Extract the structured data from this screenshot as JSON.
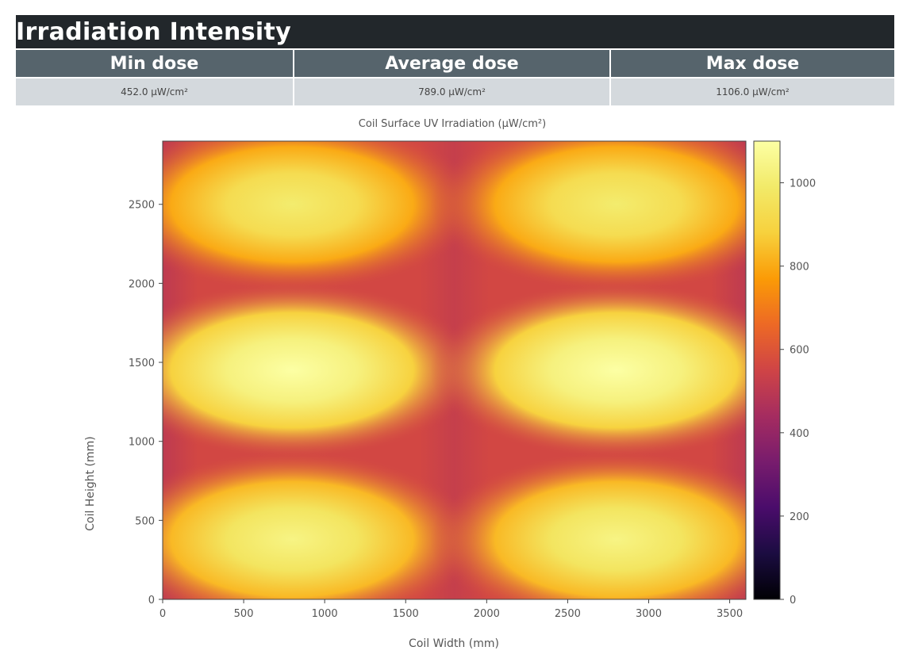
{
  "header": {
    "title": "Irradiation Intensity"
  },
  "stats": [
    {
      "label": "Min dose",
      "value": "452.0 µW/cm²"
    },
    {
      "label": "Average dose",
      "value": "789.0 µW/cm²"
    },
    {
      "label": "Max dose",
      "value": "1106.0 µW/cm²"
    }
  ],
  "chart_data": {
    "type": "heatmap",
    "title": "Coil Surface UV Irradiation (µW/cm²)",
    "xlabel": "Coil Width (mm)",
    "ylabel": "Coil Height (mm)",
    "xlim": [
      0,
      3600
    ],
    "ylim": [
      0,
      2900
    ],
    "x_ticks": [
      0,
      500,
      1000,
      1500,
      2000,
      2500,
      3000,
      3500
    ],
    "y_ticks": [
      0,
      500,
      1000,
      1500,
      2000,
      2500
    ],
    "colormap": "inferno",
    "colorbar_range": [
      0,
      1100
    ],
    "colorbar_ticks": [
      0,
      200,
      400,
      600,
      800,
      1000
    ],
    "hotspots": [
      {
        "x": 800,
        "y": 2500,
        "value": 1000
      },
      {
        "x": 2800,
        "y": 2500,
        "value": 1000
      },
      {
        "x": 800,
        "y": 1450,
        "value": 1106
      },
      {
        "x": 2800,
        "y": 1450,
        "value": 1106
      },
      {
        "x": 800,
        "y": 380,
        "value": 1040
      },
      {
        "x": 2800,
        "y": 380,
        "value": 1040
      }
    ],
    "baseline_value": 560
  }
}
